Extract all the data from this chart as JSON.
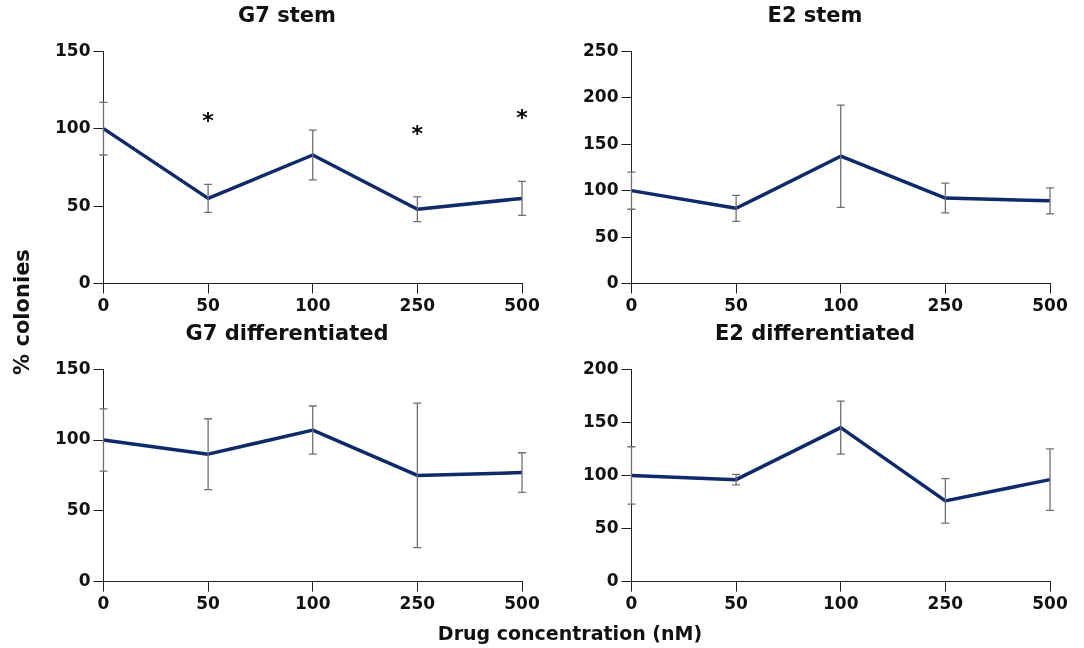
{
  "chart_data": [
    {
      "type": "line",
      "title": "G7 stem",
      "ylabel": "% colonies",
      "categories": [
        "0",
        "50",
        "100",
        "250",
        "500"
      ],
      "marker": "none",
      "ylim": [
        0,
        150
      ],
      "yticks": [
        0,
        50,
        100,
        150
      ],
      "series": [
        {
          "color": "#0e2a6a",
          "values": [
            100,
            55,
            83,
            48,
            55
          ],
          "errors": [
            17,
            9,
            16,
            8,
            11
          ],
          "value_labels": [
            null,
            "*",
            null,
            "*",
            "*"
          ]
        }
      ]
    },
    {
      "type": "line",
      "title": "E2 stem",
      "categories": [
        "0",
        "50",
        "100",
        "250",
        "500"
      ],
      "marker": "none",
      "ylim": [
        0,
        250
      ],
      "yticks": [
        0,
        50,
        100,
        150,
        200,
        250
      ],
      "series": [
        {
          "color": "#0e2a6a",
          "values": [
            100,
            81,
            137,
            92,
            89
          ],
          "errors": [
            20,
            14,
            55,
            16,
            14
          ]
        }
      ]
    },
    {
      "type": "line",
      "title": "G7 differentiated",
      "categories": [
        "0",
        "50",
        "100",
        "250",
        "500"
      ],
      "marker": "none",
      "ylim": [
        0,
        150
      ],
      "yticks": [
        0,
        50,
        100,
        150
      ],
      "series": [
        {
          "color": "#0e2a6a",
          "values": [
            100,
            90,
            107,
            75,
            77
          ],
          "errors": [
            22,
            25,
            17,
            51,
            14
          ]
        }
      ]
    },
    {
      "type": "line",
      "title": "E2 differentiated",
      "xlabel": "Drug concentration (nM)",
      "categories": [
        "0",
        "50",
        "100",
        "250",
        "500"
      ],
      "marker": "none",
      "ylim": [
        0,
        200
      ],
      "yticks": [
        0,
        50,
        100,
        150,
        200
      ],
      "series": [
        {
          "color": "#0e2a6a",
          "values": [
            100,
            96,
            145,
            76,
            96
          ],
          "errors": [
            27,
            5,
            25,
            21,
            29
          ]
        }
      ]
    }
  ]
}
